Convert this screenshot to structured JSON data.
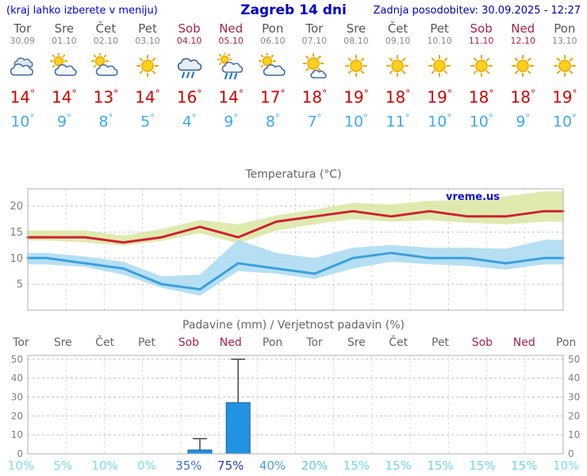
{
  "header": {
    "hint": "(kraj lahko izberete v meniju)",
    "title": "Zagreb 14 dni",
    "last_update": "Zadnja posodobitev: 30.09.2025 - 12:27"
  },
  "units": {
    "degree": "°"
  },
  "colors": {
    "header_blue": "#0000cc",
    "weekday": "#555555",
    "weekend": "#aa2244",
    "temp_high": "#d40000",
    "temp_low": "#3fa9f5"
  },
  "days": [
    {
      "name": "Tor",
      "date": "30.09",
      "weekend": false,
      "icon": "cloudy",
      "high": "14",
      "low": "10"
    },
    {
      "name": "Sre",
      "date": "01.10",
      "weekend": false,
      "icon": "sun-cloud",
      "high": "14",
      "low": "9"
    },
    {
      "name": "Čet",
      "date": "02.10",
      "weekend": false,
      "icon": "sun-cloud",
      "high": "13",
      "low": "8"
    },
    {
      "name": "Pet",
      "date": "03.10",
      "weekend": false,
      "icon": "sunny",
      "high": "14",
      "low": "5"
    },
    {
      "name": "Sob",
      "date": "04.10",
      "weekend": true,
      "icon": "rain",
      "high": "16",
      "low": "4"
    },
    {
      "name": "Ned",
      "date": "05.10",
      "weekend": true,
      "icon": "rain-sun",
      "high": "14",
      "low": "9"
    },
    {
      "name": "Pon",
      "date": "06.10",
      "weekend": false,
      "icon": "sun-cloud",
      "high": "17",
      "low": "8"
    },
    {
      "name": "Tor",
      "date": "07.10",
      "weekend": false,
      "icon": "sun-small-cloud",
      "high": "18",
      "low": "7"
    },
    {
      "name": "Sre",
      "date": "08.10",
      "weekend": false,
      "icon": "sunny",
      "high": "19",
      "low": "10"
    },
    {
      "name": "Čet",
      "date": "09.10",
      "weekend": false,
      "icon": "sunny",
      "high": "18",
      "low": "11"
    },
    {
      "name": "Pet",
      "date": "10.10",
      "weekend": false,
      "icon": "sunny",
      "high": "19",
      "low": "10"
    },
    {
      "name": "Sob",
      "date": "11.10",
      "weekend": true,
      "icon": "sunny",
      "high": "18",
      "low": "10"
    },
    {
      "name": "Ned",
      "date": "12.10",
      "weekend": true,
      "icon": "sunny",
      "high": "18",
      "low": "9"
    },
    {
      "name": "Pon",
      "date": "13.10",
      "weekend": false,
      "icon": "sunny",
      "high": "19",
      "low": "10"
    }
  ],
  "chart_data": [
    {
      "type": "line",
      "title": "Temperatura (°C)",
      "watermark": "vreme.us",
      "x_labels": [
        "Tor",
        "Sre",
        "Čet",
        "Pet",
        "Sob",
        "Ned",
        "Pon",
        "Tor",
        "Sre",
        "Čet",
        "Pet",
        "Sob",
        "Ned",
        "Pon"
      ],
      "ylim": [
        0,
        23.3
      ],
      "yticks": [
        5,
        10,
        15,
        20
      ],
      "grid": true,
      "series": [
        {
          "name": "max-temperature",
          "color": "#cc2233",
          "values": [
            14,
            14,
            13,
            14,
            16,
            14,
            17,
            18,
            19,
            18,
            19,
            18,
            18,
            19
          ]
        },
        {
          "name": "min-temperature",
          "color": "#3aa0dd",
          "values": [
            10,
            9,
            8,
            5,
            4,
            9,
            8,
            7,
            10,
            11,
            10,
            10,
            9,
            10
          ]
        }
      ],
      "bands": [
        {
          "name": "max-range",
          "color": "#d9e6a0",
          "upper": [
            15.3,
            15.3,
            14.3,
            15.6,
            17.3,
            16.5,
            18.2,
            19.3,
            20.6,
            20.3,
            21.0,
            21.2,
            21.8,
            22.8
          ],
          "lower": [
            13.4,
            13.0,
            12.4,
            13.3,
            14.8,
            12.8,
            15.3,
            16.5,
            17.5,
            17.0,
            17.3,
            16.8,
            16.5,
            17.0
          ]
        },
        {
          "name": "min-range",
          "color": "#a9d9f2",
          "upper": [
            11.0,
            10.3,
            9.3,
            6.5,
            6.8,
            13.5,
            11.0,
            10.0,
            12.0,
            12.5,
            12.0,
            12.0,
            11.8,
            13.5
          ],
          "lower": [
            8.8,
            8.3,
            6.8,
            4.3,
            2.8,
            7.5,
            7.0,
            6.0,
            8.0,
            9.3,
            8.8,
            8.5,
            7.8,
            8.8
          ]
        }
      ]
    },
    {
      "type": "bar",
      "title": "Padavine (mm) / Verjetnost padavin (%)",
      "x_labels": [
        "Tor",
        "Sre",
        "Čet",
        "Pet",
        "Sob",
        "Ned",
        "Pon",
        "Tor",
        "Sre",
        "Čet",
        "Pet",
        "Sob",
        "Ned",
        "Pon"
      ],
      "ylim": [
        0,
        52
      ],
      "yticks": [
        0,
        10,
        20,
        30,
        40,
        50
      ],
      "values": [
        0,
        0,
        0,
        0,
        2,
        27,
        0,
        0,
        0,
        0,
        0,
        0,
        0,
        0
      ],
      "whisker_max": [
        0,
        0,
        0,
        0,
        8,
        50,
        0,
        0,
        0,
        0,
        0,
        0,
        0,
        0
      ],
      "bar_color": "#2193e0",
      "bar_border": "#155f9e",
      "probabilities": [
        {
          "label": "10%",
          "color": "#7bdef2"
        },
        {
          "label": "5%",
          "color": "#7bdef2"
        },
        {
          "label": "10%",
          "color": "#7bdef2"
        },
        {
          "label": "0%",
          "color": "#7bdef2"
        },
        {
          "label": "35%",
          "color": "#3f6fd8"
        },
        {
          "label": "75%",
          "color": "#2238b8"
        },
        {
          "label": "40%",
          "color": "#4f9be2"
        },
        {
          "label": "20%",
          "color": "#5fc6ec"
        },
        {
          "label": "15%",
          "color": "#6fd6f0"
        },
        {
          "label": "15%",
          "color": "#6fd6f0"
        },
        {
          "label": "15%",
          "color": "#6fd6f0"
        },
        {
          "label": "15%",
          "color": "#6fd6f0"
        },
        {
          "label": "15%",
          "color": "#6fd6f0"
        },
        {
          "label": "10%",
          "color": "#7bdef2"
        }
      ]
    }
  ]
}
